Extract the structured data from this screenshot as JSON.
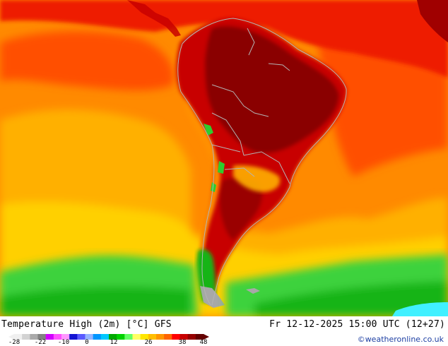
{
  "map": {
    "title": "Temperature High (2m) [°C] GFS",
    "run_time": "Fr 12-12-2025 15:00 UTC (12+27)",
    "credit": "©weatheronline.co.uk",
    "region": "South America",
    "colors": {
      "very_hot": "#8a0000",
      "hot": "#c80000",
      "warm_red": "#ee1a00",
      "orange_red": "#ff5000",
      "orange": "#ff8a00",
      "yellow_orange": "#ffb000",
      "yellow": "#ffd000",
      "green_light": "#3cd23c",
      "green": "#18b418",
      "green_dark": "#068c06",
      "cyan": "#40f0ff",
      "gray": "#a8a8a8",
      "border": "#b4b4b4"
    }
  },
  "legend": {
    "ticks": [
      "-28",
      "-22",
      "-10",
      "0",
      "12",
      "26",
      "38",
      "48"
    ],
    "colors": [
      "#f0f0f0",
      "#d2d2d2",
      "#aaaaaa",
      "#828282",
      "#d200ff",
      "#ff50ff",
      "#ff96ff",
      "#1414d2",
      "#5a5aff",
      "#96b4ff",
      "#0096ff",
      "#00c8ff",
      "#00aa00",
      "#00d200",
      "#64ff64",
      "#ffff64",
      "#ffe600",
      "#ffbe00",
      "#ff9600",
      "#ff6400",
      "#ff0000",
      "#c80000",
      "#960000",
      "#640000"
    ]
  }
}
